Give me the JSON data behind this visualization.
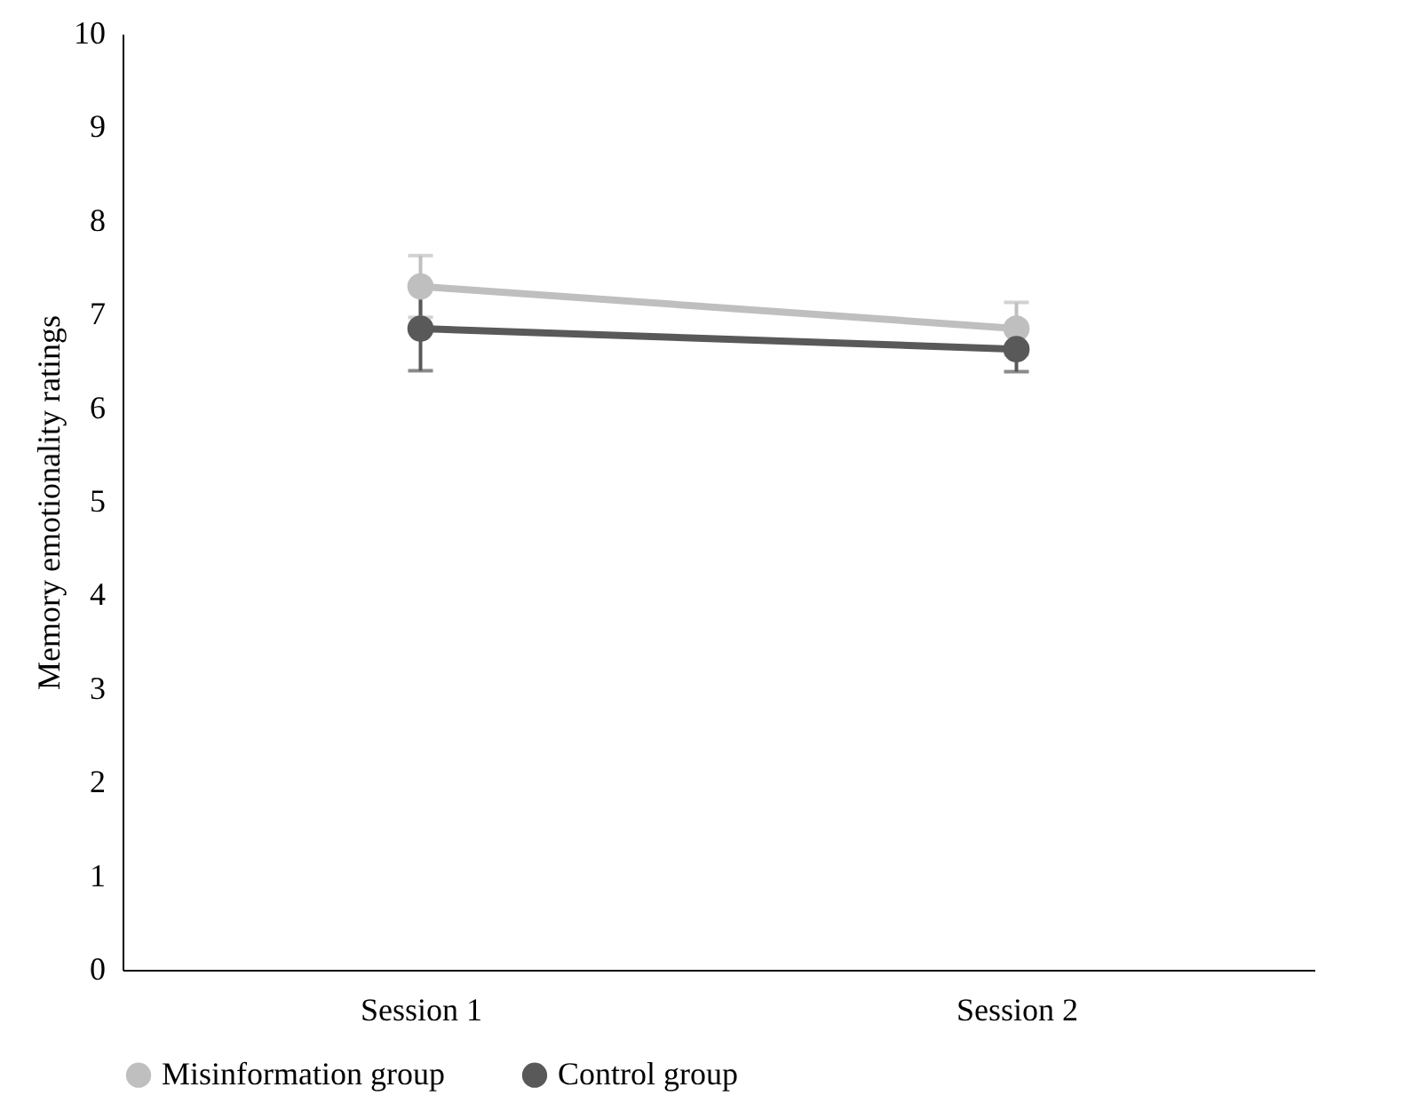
{
  "chart_data": {
    "type": "line",
    "ylabel": "Memory emotionality ratings",
    "categories": [
      "Session 1",
      "Session 2"
    ],
    "series": [
      {
        "name": "Misinformation group",
        "color": "#bfbfbf",
        "values": [
          7.3,
          6.85
        ],
        "errors": [
          0.33,
          0.28
        ]
      },
      {
        "name": "Control group",
        "color": "#595959",
        "values": [
          6.85,
          6.63
        ],
        "errors": [
          0.45,
          0.24
        ]
      }
    ],
    "ylim": [
      0,
      10
    ],
    "yticks": [
      0,
      1,
      2,
      3,
      4,
      5,
      6,
      7,
      8,
      9,
      10
    ],
    "grid": false,
    "legend": "bottom",
    "marker": "circle",
    "line_style": "solid"
  }
}
